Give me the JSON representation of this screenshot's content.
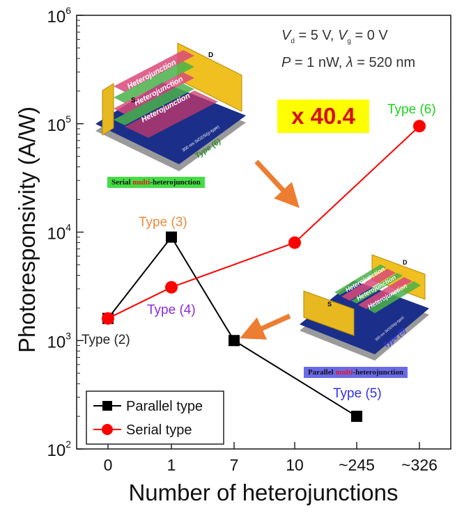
{
  "chart_data": {
    "type": "line",
    "yscale": "log",
    "categories": [
      "0",
      "1",
      "7",
      "10",
      "~245",
      "~326"
    ],
    "xlabel": "Number of heterojunctions",
    "ylabel": "Photoresponsivity (A/W)",
    "ylim": [
      100,
      1000000
    ],
    "ytick_base": "10",
    "yticks": [
      {
        "value": 100,
        "exp": "2"
      },
      {
        "value": 1000,
        "exp": "3"
      },
      {
        "value": 10000,
        "exp": "4"
      },
      {
        "value": 100000,
        "exp": "5"
      },
      {
        "value": 1000000,
        "exp": "6"
      }
    ],
    "series": [
      {
        "name": "Parallel type",
        "color": "#000000",
        "marker": "square",
        "points": [
          {
            "x": "0",
            "y": 1600
          },
          {
            "x": "1",
            "y": 9000
          },
          {
            "x": "7",
            "y": 1000
          },
          {
            "x": "~245",
            "y": 200
          }
        ]
      },
      {
        "name": "Serial type",
        "color": "#ff0000",
        "marker": "circle",
        "points": [
          {
            "x": "0",
            "y": 1600
          },
          {
            "x": "1",
            "y": 3100
          },
          {
            "x": "10",
            "y": 8000
          },
          {
            "x": "~326",
            "y": 95000
          }
        ]
      }
    ],
    "annotations": {
      "type2": {
        "text": "Type (2)",
        "color": "#222222"
      },
      "type3": {
        "text": "Type (3)",
        "color": "#f08a3a"
      },
      "type4": {
        "text": "Type (4)",
        "color": "#8b2bd9"
      },
      "type5": {
        "text": "Type (5)",
        "color": "#3333e6"
      },
      "type6": {
        "text": "Type (6)",
        "color": "#1fd11f"
      },
      "factor": "x 40.4",
      "cond_vd_var": "V",
      "cond_vd_sub": "d",
      "cond_vd_val": " = 5 V,  ",
      "cond_vg_var": "V",
      "cond_vg_sub": "g",
      "cond_vg_val": " = 0 V",
      "cond_p_var": "P",
      "cond_p_val": " = 1 nW, ",
      "cond_lambda_var": "λ",
      "cond_lambda_val": " = 520 nm"
    },
    "arrow_color": "#ed7d31"
  },
  "inset_serial": {
    "caption_pre": "Serial ",
    "caption_multi": "multi",
    "caption_post": "-heterojunction",
    "caption_bg": "#44dd44",
    "junction_label": "Heterojunction",
    "source": "S",
    "drain": "D",
    "substrate": "300 nm SiO2/Si(p-type)",
    "type_label": "Type (6)"
  },
  "inset_parallel": {
    "caption_pre": "Parallel ",
    "caption_multi": "multi",
    "caption_post": "-heterojunction",
    "caption_bg": "#6a6ae8",
    "junction_label": "Heterojunction",
    "source": "S",
    "drain": "D",
    "substrate": "300 nm SiO2/Si(p-type)",
    "type_label": "Type (5)"
  }
}
